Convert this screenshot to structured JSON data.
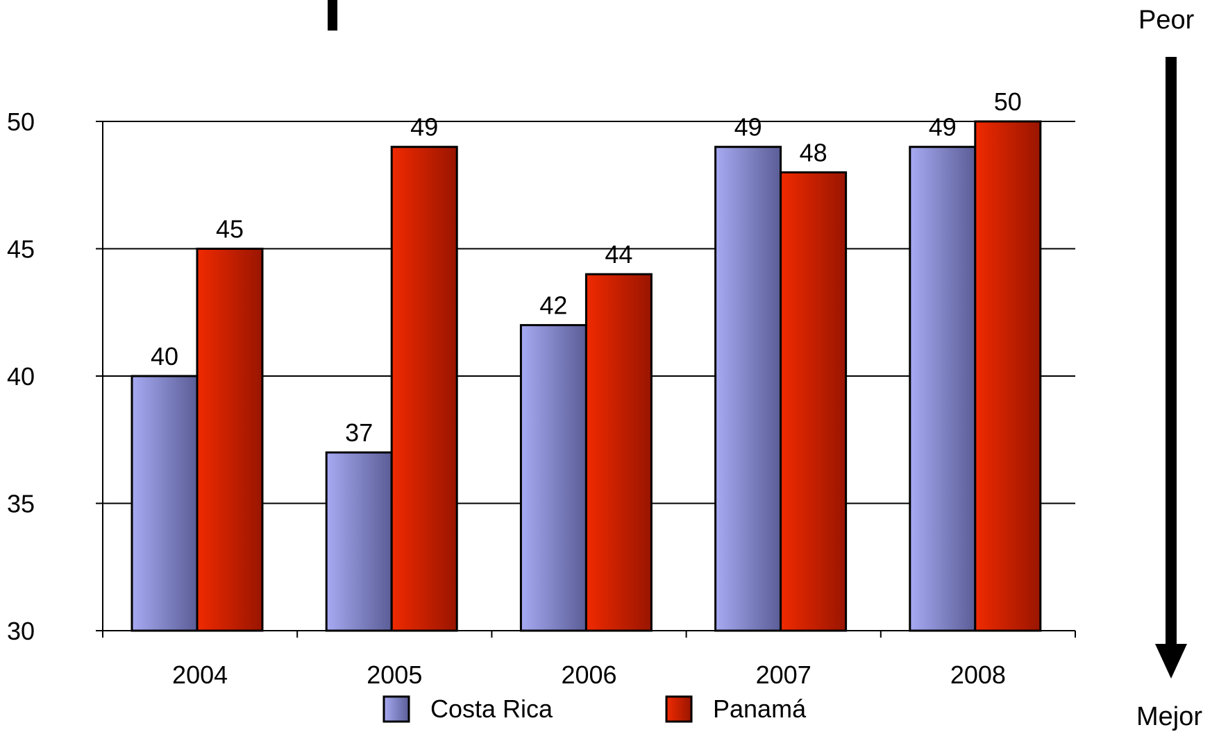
{
  "chart_data": {
    "type": "bar",
    "title": "",
    "xlabel": "",
    "ylabel": "",
    "categories": [
      "2004",
      "2005",
      "2006",
      "2007",
      "2008"
    ],
    "series": [
      {
        "name": "Costa Rica",
        "values": [
          40,
          37,
          42,
          49,
          49
        ],
        "color": "#a7aaf2"
      },
      {
        "name": "Panamá",
        "values": [
          45,
          49,
          44,
          48,
          50
        ],
        "color": "#e01d00"
      }
    ],
    "ylim": [
      30,
      50
    ],
    "yticks": [
      "30",
      "35",
      "40",
      "45",
      "50"
    ],
    "grid": true,
    "legend": "bottom",
    "data_labels": true
  },
  "annotations": {
    "top_label": "Peor",
    "bottom_label": "Mejor",
    "arrow_direction": "down"
  }
}
